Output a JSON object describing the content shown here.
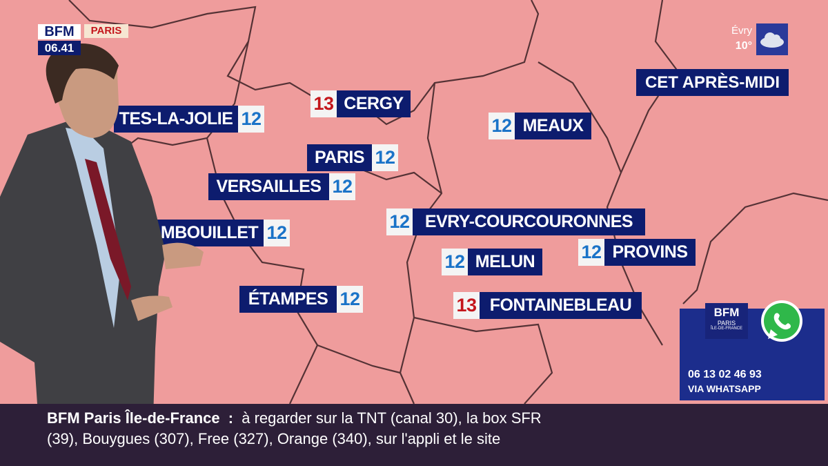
{
  "header": {
    "logo": "BFM",
    "channel": "PARIS",
    "time": "06.41"
  },
  "weather_now": {
    "city": "Évry",
    "temp": "10°"
  },
  "period": "CET APRÈS-MIDI",
  "cities": [
    {
      "name": "TES-LA-JOLIE",
      "temp": 12,
      "temp_color": "#1a73c8"
    },
    {
      "name": "CERGY",
      "temp": 13,
      "temp_color": "#c4161c"
    },
    {
      "name": "PARIS",
      "temp": 12,
      "temp_color": "#1a73c8"
    },
    {
      "name": "VERSAILLES",
      "temp": 12,
      "temp_color": "#1a73c8"
    },
    {
      "name": "RAMBOUILLET",
      "temp": 12,
      "temp_color": "#1a73c8"
    },
    {
      "name": "EVRY-COURCOURONNES",
      "temp": 12,
      "temp_color": "#1a73c8"
    },
    {
      "name": "MEAUX",
      "temp": 12,
      "temp_color": "#1a73c8"
    },
    {
      "name": "MELUN",
      "temp": 12,
      "temp_color": "#1a73c8"
    },
    {
      "name": "PROVINS",
      "temp": 12,
      "temp_color": "#1a73c8"
    },
    {
      "name": "ÉTAMPES",
      "temp": 12,
      "temp_color": "#1a73c8"
    },
    {
      "name": "FONTAINEBLEAU",
      "temp": 13,
      "temp_color": "#c4161c"
    }
  ],
  "whatsapp": {
    "logo": "BFM",
    "logo_sub1": "PARIS",
    "logo_sub2": "ÎLE-DE-FRANCE",
    "phone": "06 13 02 46 93",
    "label": "VIA WHATSAPP"
  },
  "ticker": {
    "brand": "BFM Paris Île-de-France",
    "separator": ":",
    "line1": "à regarder sur la TNT (canal 30), la box SFR",
    "line2": "(39), Bouygues (307), Free (327), Orange (340), sur l'appli et le site"
  }
}
